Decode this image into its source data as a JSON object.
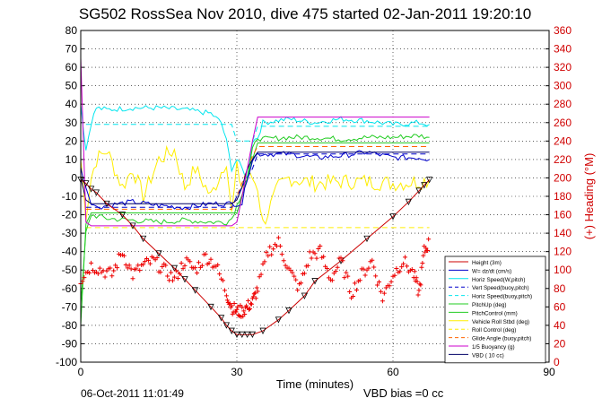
{
  "figure": {
    "title": "SG502 RossSea Nov 2010, dive 475 started 02-Jan-2011 19:20:10",
    "footer_left": "06-Oct-2011 11:01:49",
    "footer_right": "VBD bias =0 cc"
  },
  "colors": {
    "height": "#cc0000",
    "w": "#0000cc",
    "horz_speed": "#00e5ee",
    "vert_speed_dash": "#0000cc",
    "horz_speed_dash": "#00e5ee",
    "pitch_up": "#22cc22",
    "pitch_control": "#22cc22",
    "vehicle_roll": "#ffee00",
    "roll_control": "#ffee00",
    "glide_angle": "#ff6600",
    "buoyancy": "#cc00cc",
    "vbd": "#000066",
    "heading": "#ee0000"
  },
  "chart_data": {
    "type": "line",
    "xlabel": "Time (minutes)",
    "ylabel": "",
    "ylabel_right": "(+) Heading (°M)",
    "xlim": [
      0,
      90
    ],
    "ylim": [
      -100,
      80
    ],
    "ylim_right": [
      0,
      360
    ],
    "xticks": [
      0,
      30,
      60,
      90
    ],
    "yticks": [
      -100,
      -90,
      -80,
      -70,
      -60,
      -50,
      -40,
      -30,
      -20,
      -10,
      0,
      10,
      20,
      30,
      40,
      50,
      60,
      70,
      80
    ],
    "yticks_right": [
      0,
      20,
      40,
      60,
      80,
      100,
      120,
      140,
      160,
      180,
      200,
      220,
      240,
      260,
      280,
      300,
      320,
      340,
      360
    ],
    "grid": true,
    "legend_position": "lower-right",
    "legend": [
      "Height (3m)",
      "W= dz/dt (cm/s)",
      "Horiz Speed(W,pitch)",
      "Vert Speed(buoy,pitch)",
      "Horiz Speed(buoy,pitch)",
      "PitchUp (deg)",
      "PitchControl (mm)",
      "Vehicle Roll Stbd (deg)",
      "Roll Control (deg)",
      "Glide Angle (buoy,pitch)",
      "1/5 Buoyancy (g)",
      "VBD ( 10 cc)"
    ],
    "series": [
      {
        "name": "Height (3m)",
        "style": "line+triangles",
        "x": [
          0,
          1,
          2,
          3,
          5,
          8,
          10,
          12,
          15,
          18,
          20,
          22,
          25,
          27,
          28,
          29,
          30,
          31,
          32,
          33,
          35,
          38,
          40,
          43,
          45,
          50,
          55,
          60,
          63,
          65,
          66,
          67
        ],
        "y": [
          -1,
          -3,
          -6,
          -8,
          -14,
          -20,
          -26,
          -33,
          -41,
          -49,
          -55,
          -61,
          -70,
          -76,
          -80,
          -83,
          -85,
          -85,
          -85,
          -85,
          -83,
          -77,
          -72,
          -64,
          -56,
          -45,
          -33,
          -21,
          -13,
          -7,
          -4,
          -1
        ]
      },
      {
        "name": "W= dz/dt (cm/s)",
        "style": "noisy",
        "x": [
          0,
          1,
          2,
          3,
          5,
          10,
          15,
          20,
          25,
          28,
          29,
          30,
          31,
          32,
          33,
          34,
          35,
          40,
          45,
          50,
          55,
          60,
          65,
          67
        ],
        "y": [
          5,
          -5,
          -13,
          -16,
          -15,
          -13,
          -15,
          -16,
          -14,
          -14,
          -14,
          -14,
          -14,
          0,
          10,
          13,
          13,
          13,
          11,
          12,
          14,
          11,
          11,
          10
        ]
      },
      {
        "name": "Horiz Speed(W,pitch)",
        "style": "noisy",
        "x": [
          0,
          1,
          2,
          3,
          5,
          10,
          15,
          20,
          25,
          27,
          28,
          29,
          30,
          31,
          32,
          33,
          34,
          35,
          40,
          45,
          50,
          55,
          60,
          65,
          67
        ],
        "y": [
          40,
          15,
          30,
          38,
          37,
          38,
          38,
          37,
          35,
          30,
          20,
          5,
          10,
          5,
          0,
          20,
          22,
          30,
          32,
          30,
          32,
          31,
          29,
          30,
          29
        ]
      },
      {
        "name": "Vert Speed(buoy,pitch)",
        "style": "dash",
        "x": [
          1,
          29,
          30,
          33,
          34,
          67
        ],
        "y": [
          -16,
          -16,
          -10,
          5,
          13,
          13
        ]
      },
      {
        "name": "Horiz Speed(buoy,pitch)",
        "style": "dash",
        "x": [
          1,
          29,
          30,
          33,
          34,
          67
        ],
        "y": [
          29,
          29,
          20,
          20,
          28,
          28
        ]
      },
      {
        "name": "PitchUp (deg)",
        "style": "noisy",
        "x": [
          0,
          1,
          2,
          5,
          10,
          15,
          20,
          25,
          28,
          29,
          30,
          31,
          32,
          33,
          34,
          35,
          40,
          45,
          50,
          55,
          60,
          65,
          67
        ],
        "y": [
          -70,
          -30,
          -20,
          -22,
          -23,
          -24,
          -23,
          -24,
          -24,
          -22,
          -15,
          -8,
          0,
          15,
          22,
          21,
          22,
          22,
          21,
          22,
          22,
          23,
          22
        ]
      },
      {
        "name": "PitchControl (mm)",
        "style": "line",
        "x": [
          0,
          1,
          2,
          29,
          30,
          31,
          32,
          33,
          34,
          67
        ],
        "y": [
          -80,
          -25,
          -19,
          -19,
          -19,
          -10,
          0,
          10,
          19,
          19
        ]
      },
      {
        "name": "Vehicle Roll Stbd (deg)",
        "style": "noisy",
        "x": [
          0,
          1,
          2,
          3,
          5,
          8,
          10,
          12,
          15,
          18,
          20,
          22,
          25,
          28,
          29,
          30,
          31,
          32,
          33,
          34,
          35,
          38,
          40,
          45,
          50,
          55,
          60,
          65,
          67
        ],
        "y": [
          10,
          -20,
          0,
          10,
          15,
          -5,
          5,
          -10,
          10,
          15,
          -5,
          5,
          -10,
          10,
          -20,
          5,
          -5,
          0,
          0,
          -5,
          -25,
          -5,
          0,
          -3,
          -2,
          -2,
          -3,
          -2,
          -1
        ]
      },
      {
        "name": "Roll Control (deg)",
        "style": "dash",
        "x": [
          1,
          67
        ],
        "y": [
          -27,
          -27
        ]
      },
      {
        "name": "Glide Angle (buoy,pitch)",
        "style": "dash",
        "x": [
          1,
          29,
          30,
          33,
          34,
          67
        ],
        "y": [
          -17,
          -17,
          -10,
          12,
          17,
          17
        ]
      },
      {
        "name": "1/5 Buoyancy (g)",
        "style": "line",
        "x": [
          0,
          1,
          2,
          29,
          30,
          31,
          32,
          33,
          34,
          67
        ],
        "y": [
          65,
          -24,
          -26,
          -26,
          -24,
          -10,
          5,
          20,
          33,
          33
        ]
      },
      {
        "name": "VBD ( 10 cc)",
        "style": "line",
        "x": [
          0,
          1,
          2,
          29,
          30,
          31,
          32,
          33,
          34,
          67
        ],
        "y": [
          0,
          -12,
          -14,
          -14,
          -12,
          -5,
          5,
          10,
          14,
          14
        ]
      },
      {
        "name": "Heading",
        "style": "markers",
        "axis": "right",
        "x": [
          0,
          2,
          4,
          6,
          8,
          10,
          12,
          14,
          16,
          18,
          20,
          22,
          24,
          26,
          28,
          29,
          30,
          31,
          32,
          33,
          34,
          36,
          38,
          40,
          42,
          44,
          46,
          48,
          50,
          52,
          54,
          56,
          58,
          60,
          62,
          64,
          65,
          66,
          67
        ],
        "y": [
          90,
          105,
          100,
          95,
          120,
          95,
          105,
          110,
          100,
          90,
          110,
          100,
          115,
          105,
          75,
          60,
          55,
          55,
          60,
          65,
          80,
          120,
          130,
          100,
          80,
          115,
          120,
          90,
          110,
          75,
          95,
          110,
          70,
          95,
          110,
          95,
          75,
          120,
          130
        ]
      }
    ]
  }
}
